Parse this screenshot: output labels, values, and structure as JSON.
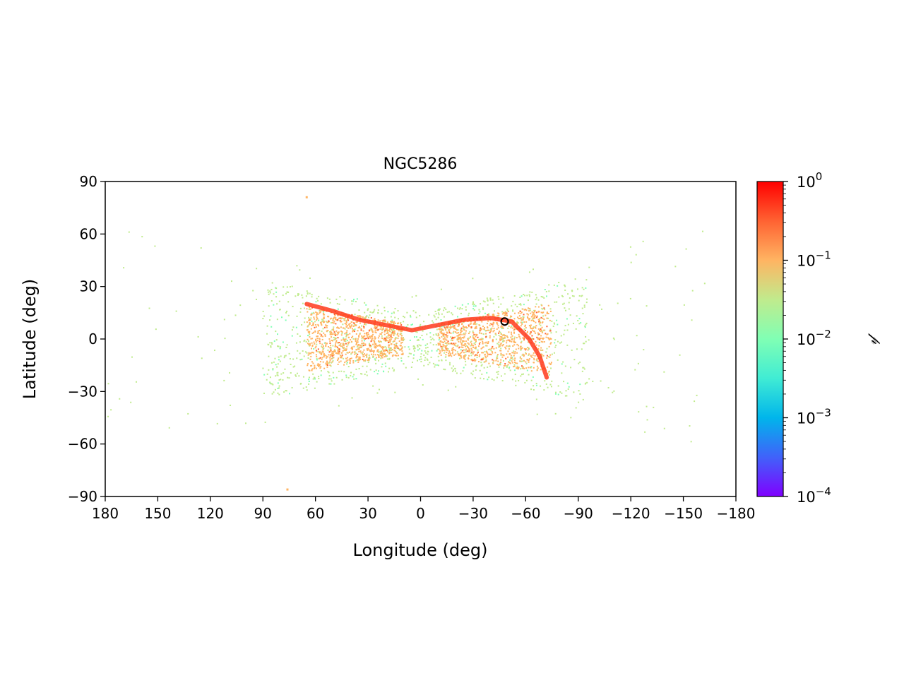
{
  "chart_data": {
    "type": "scatter",
    "title": "NGC5286",
    "xlabel": "Longitude (deg)",
    "ylabel": "Latitude (deg)",
    "xlim": [
      180,
      -180
    ],
    "ylim": [
      -90,
      90
    ],
    "x_ticks": [
      {
        "value": 180,
        "label": "180"
      },
      {
        "value": 150,
        "label": "150"
      },
      {
        "value": 120,
        "label": "120"
      },
      {
        "value": 90,
        "label": "90"
      },
      {
        "value": 60,
        "label": "60"
      },
      {
        "value": 30,
        "label": "30"
      },
      {
        "value": 0,
        "label": "0"
      },
      {
        "value": -30,
        "label": "−30"
      },
      {
        "value": -60,
        "label": "−60"
      },
      {
        "value": -90,
        "label": "−90"
      },
      {
        "value": -120,
        "label": "−120"
      },
      {
        "value": -150,
        "label": "−150"
      },
      {
        "value": -180,
        "label": "−180"
      }
    ],
    "y_ticks": [
      {
        "value": 90,
        "label": "90"
      },
      {
        "value": 60,
        "label": "60"
      },
      {
        "value": 30,
        "label": "30"
      },
      {
        "value": 0,
        "label": "0"
      },
      {
        "value": -30,
        "label": "−30"
      },
      {
        "value": -60,
        "label": "−60"
      },
      {
        "value": -90,
        "label": "−90"
      }
    ],
    "grid": false,
    "legend": "none",
    "colorbar": {
      "label": "𝓅",
      "scale": "log",
      "range": [
        0.0001,
        1
      ],
      "colormap": "rainbow",
      "ticks": [
        {
          "value": 1,
          "base": "10",
          "exp": "0"
        },
        {
          "value": 0.1,
          "base": "10",
          "exp": "−1"
        },
        {
          "value": 0.01,
          "base": "10",
          "exp": "−2"
        },
        {
          "value": 0.001,
          "base": "10",
          "exp": "−3"
        },
        {
          "value": 0.0001,
          "base": "10",
          "exp": "−4"
        }
      ],
      "stops": [
        "#8000ff",
        "#4062fa",
        "#00b5eb",
        "#40ecd4",
        "#80ffb4",
        "#c0eb8d",
        "#ffb462",
        "#ff6232",
        "#ff0000"
      ]
    },
    "cluster_marker": {
      "lon": -48,
      "lat": 10
    },
    "stream_density": {
      "description": "Bow-tie distribution of stream stars (probability-coloured scatter)",
      "dense_lobes": [
        {
          "lon_range": [
            65,
            10
          ],
          "lat_range": [
            -20,
            22
          ]
        },
        {
          "lon_range": [
            -10,
            -75
          ],
          "lat_range": [
            -28,
            18
          ]
        }
      ],
      "high_probability_track": [
        [
          65,
          20
        ],
        [
          50,
          16
        ],
        [
          35,
          11
        ],
        [
          20,
          8
        ],
        [
          5,
          5
        ],
        [
          -10,
          8
        ],
        [
          -25,
          11
        ],
        [
          -40,
          12
        ],
        [
          -52,
          10
        ],
        [
          -62,
          0
        ],
        [
          -68,
          -10
        ],
        [
          -72,
          -22
        ]
      ],
      "low_probability_halo_lon": [
        90,
        -95
      ],
      "outliers": [
        [
          65,
          81
        ],
        [
          76,
          -86
        ]
      ]
    }
  }
}
